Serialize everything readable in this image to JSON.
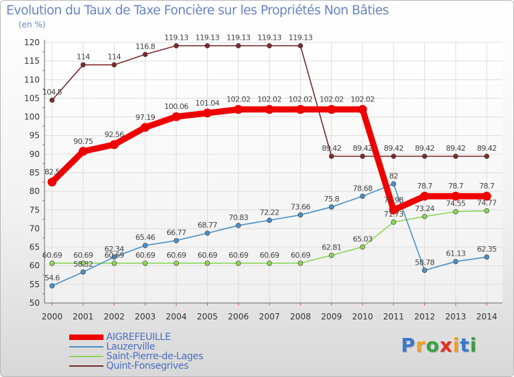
{
  "chart_data": {
    "type": "line",
    "title": "Evolution du Taux de Taxe Foncière sur les Propriétés Non Bâties",
    "ylabel": "(en %)",
    "xlabel": "",
    "ylim": [
      50,
      120
    ],
    "yticks": [
      "50",
      "55",
      "60",
      "65",
      "70",
      "75",
      "80",
      "85",
      "90",
      "95",
      "100",
      "105",
      "110",
      "115",
      "120"
    ],
    "categories": [
      "2000",
      "2001",
      "2002",
      "2003",
      "2004",
      "2005",
      "2006",
      "2007",
      "2008",
      "2009",
      "2010",
      "2011",
      "2012",
      "2013",
      "2014"
    ],
    "series": [
      {
        "name": "Quint-Fonsegrives",
        "color": "#7b2a2a",
        "values": [
          104.5,
          114,
          114,
          116.8,
          119.13,
          119.13,
          119.13,
          119.13,
          119.13,
          89.42,
          89.42,
          89.42,
          89.42,
          89.42,
          89.42
        ],
        "labels": [
          "104.5",
          "114",
          "114",
          "116.8",
          "119.13",
          "119.13",
          "119.13",
          "119.13",
          "119.13",
          "89.42",
          "89.42",
          "89.42",
          "89.42",
          "89.42",
          "89.42"
        ]
      },
      {
        "name": "Saint-Pierre-de-Lages",
        "color": "#8cd65a",
        "values": [
          60.69,
          60.69,
          60.69,
          60.69,
          60.69,
          60.69,
          60.69,
          60.69,
          60.69,
          62.81,
          65.03,
          71.73,
          73.24,
          74.55,
          74.77
        ],
        "labels": [
          "60.69",
          "60.69",
          "60.69",
          "60.69",
          "60.69",
          "60.69",
          "60.69",
          "60.69",
          "60.69",
          "62.81",
          "65.03",
          "71.73",
          "73.24",
          "74.55",
          "74.77"
        ]
      },
      {
        "name": "Lauzerville",
        "color": "#4a90c8",
        "values": [
          54.6,
          58.32,
          62.34,
          65.46,
          66.77,
          68.77,
          70.83,
          72.22,
          73.66,
          75.8,
          78.68,
          82,
          58.78,
          61.13,
          62.35
        ],
        "labels": [
          "54.6",
          "58.32",
          "62.34",
          "65.46",
          "66.77",
          "68.77",
          "70.83",
          "72.22",
          "73.66",
          "75.8",
          "78.68",
          "82",
          "58.78",
          "61.13",
          "62.35"
        ]
      },
      {
        "name": "AIGREFEUILLE",
        "color": "#ee0000",
        "values": [
          82.5,
          90.75,
          92.56,
          97.19,
          100.06,
          101.04,
          102.02,
          102.02,
          102.02,
          102.02,
          102.02,
          74.98,
          78.7,
          78.7,
          78.7
        ],
        "labels": [
          "82.5",
          "90.75",
          "92.56",
          "97.19",
          "100.06",
          "101.04",
          "102.02",
          "102.02",
          "102.02",
          "102.02",
          "102.02",
          "74.98",
          "78.7",
          "78.7",
          "78.7"
        ]
      }
    ],
    "legend": [
      "AIGREFEUILLE",
      "Lauzerville",
      "Saint-Pierre-de-Lages",
      "Quint-Fonsegrives"
    ]
  },
  "brand": {
    "letters": [
      "P",
      "r",
      "o",
      "x",
      "i",
      "t",
      "i"
    ],
    "colors": [
      "#3a78c8",
      "#f0a020",
      "#3aa040",
      "#e03020",
      "#f0a020",
      "#3a78c8",
      "#3aa040"
    ]
  }
}
